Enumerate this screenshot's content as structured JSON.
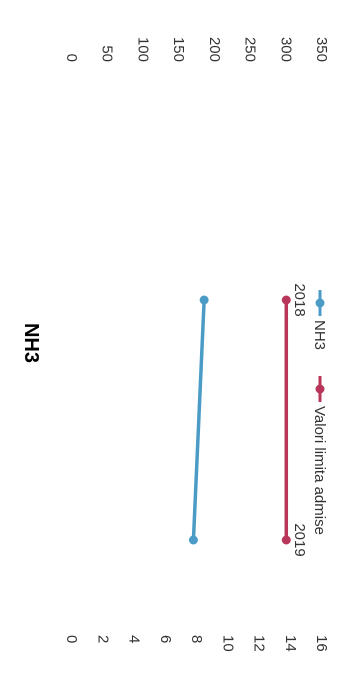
{
  "chart_data": {
    "type": "line",
    "title": "NH3",
    "categories": [
      "2018",
      "2019"
    ],
    "series": [
      {
        "name": "NH3",
        "values": [
          185,
          170
        ],
        "color": "#4a9cc7",
        "axis": "left"
      },
      {
        "name": "Valori limita admise",
        "values": [
          300,
          300
        ],
        "color": "#b8365a",
        "axis": "left"
      }
    ],
    "y_left": {
      "ticks": [
        "350",
        "300",
        "250",
        "200",
        "150",
        "100",
        "50",
        "0"
      ],
      "range": [
        0,
        350
      ]
    },
    "y_right": {
      "ticks": [
        "16",
        "14",
        "12",
        "10",
        "8",
        "6",
        "4",
        "2",
        "0"
      ],
      "range": [
        0,
        16
      ]
    },
    "legend_position": "bottom",
    "grid": false,
    "orientation": "rotated-90-clockwise"
  }
}
